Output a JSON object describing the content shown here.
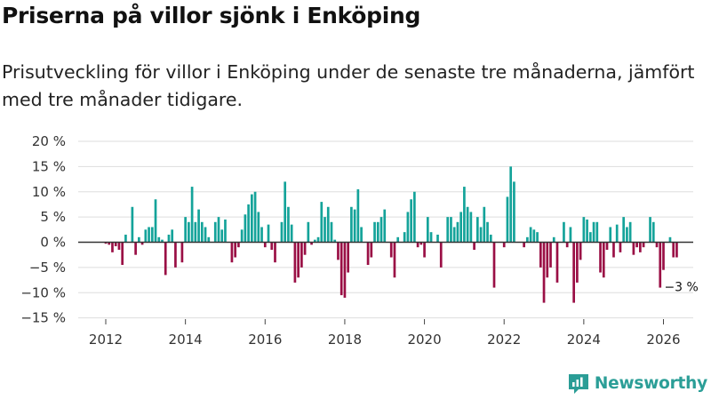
{
  "header": {
    "title": "Priserna på villor sjönk i Enköping",
    "subtitle": "Prisutveckling för villor i Enköping under de senaste tre månaderna, jämfört med tre månader tidigare."
  },
  "brand": {
    "name": "Newsworthy",
    "color": "#2a9d96"
  },
  "colors": {
    "positive": "#14a39a",
    "negative": "#9a0f45",
    "zero_line": "#333333",
    "grid": "#dddddd"
  },
  "chart_data": {
    "type": "bar",
    "title": "Priserna på villor sjönk i Enköping",
    "xlabel": "",
    "ylabel": "",
    "unit": "%",
    "ylim": [
      -15,
      20
    ],
    "yticks": [
      20,
      15,
      10,
      5,
      0,
      -5,
      -10,
      -15
    ],
    "ytick_labels": [
      "20 %",
      "15 %",
      "10 %",
      "5 %",
      "0 %",
      "−5 %",
      "−10 %",
      "−15 %"
    ],
    "xlim": [
      2011.5,
      2026.8
    ],
    "xticks": [
      2012,
      2014,
      2016,
      2018,
      2020,
      2022,
      2024,
      2026
    ],
    "xtick_labels": [
      "2012",
      "2014",
      "2016",
      "2018",
      "2020",
      "2022",
      "2024",
      "2026"
    ],
    "grid": true,
    "start": {
      "year": 2012,
      "month": 1
    },
    "frequency": "monthly",
    "values": [
      -0.3,
      -0.5,
      -2,
      -0.8,
      -1.5,
      -4.5,
      1.5,
      0,
      7,
      -2.5,
      1,
      -0.5,
      2.5,
      3,
      3,
      8.5,
      1,
      0.5,
      -6.5,
      1.5,
      2.5,
      -5,
      0,
      -4,
      5,
      4,
      11,
      4,
      6.5,
      4,
      3,
      1,
      0,
      4,
      5,
      2.5,
      4.5,
      0,
      -4,
      -3,
      -1,
      2.5,
      5.5,
      7.5,
      9.5,
      10,
      6,
      3,
      -1,
      3.5,
      -1.5,
      -4,
      0,
      4,
      12,
      7,
      3.5,
      -8,
      -7,
      -5,
      -2.5,
      4,
      -0.5,
      0.5,
      1,
      8,
      5,
      7,
      4,
      0.5,
      -3.5,
      -10.5,
      -11,
      -6,
      7,
      6.5,
      10.5,
      3,
      0,
      -4.5,
      -3,
      4,
      4,
      5,
      6.5,
      0,
      -3,
      -7,
      1,
      0,
      2,
      6,
      8.5,
      10,
      -1,
      -0.5,
      -3,
      5,
      2,
      0,
      1.5,
      -5,
      0,
      5,
      5,
      3,
      4,
      6,
      11,
      7,
      6,
      -1.5,
      5,
      3,
      7,
      4,
      1.5,
      -9,
      0,
      0,
      -1,
      9,
      15,
      12,
      0,
      0,
      -1,
      1,
      3,
      2.5,
      2,
      -5,
      -12,
      -7,
      -5,
      1,
      -8,
      0,
      4,
      -1,
      3,
      -12,
      -8,
      -3.5,
      5,
      4.5,
      2,
      4,
      4,
      -6,
      -7,
      -1.5,
      3,
      -3,
      3.5,
      -2,
      5,
      3,
      4,
      -2.5,
      -1,
      -2,
      -1,
      0,
      5,
      4,
      -1,
      -9,
      -5.5,
      0,
      1,
      -3,
      -3
    ],
    "annotations": [
      {
        "text": "−3 %",
        "target": "last_value"
      }
    ]
  }
}
